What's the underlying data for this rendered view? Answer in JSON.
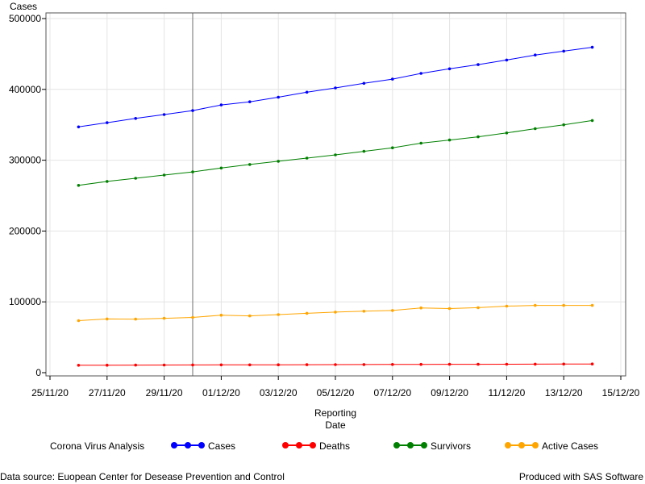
{
  "footer": {
    "source": "Data source: Euopean Center for Desease Prevention and Control",
    "produced": "Produced with SAS Software"
  },
  "chart_data": {
    "type": "line",
    "ylabel": "Cases",
    "xlabel_lines": [
      "Reporting",
      "Date"
    ],
    "legend_title": "Corona Virus Analysis",
    "legend_position": "bottom",
    "grid": true,
    "ylim": [
      0,
      500000
    ],
    "yticks": [
      0,
      100000,
      200000,
      300000,
      400000,
      500000
    ],
    "xlim": [
      "25/11/20",
      "15/12/20"
    ],
    "xticks": [
      "25/11/20",
      "27/11/20",
      "29/11/20",
      "01/12/20",
      "03/12/20",
      "05/12/20",
      "07/12/20",
      "09/12/20",
      "11/12/20",
      "13/12/20",
      "15/12/20"
    ],
    "reference_line_x": "30/11/20",
    "x": [
      "26/11/20",
      "27/11/20",
      "28/11/20",
      "29/11/20",
      "30/11/20",
      "01/12/20",
      "02/12/20",
      "03/12/20",
      "04/12/20",
      "05/12/20",
      "06/12/20",
      "07/12/20",
      "08/12/20",
      "09/12/20",
      "10/12/20",
      "11/12/20",
      "12/12/20",
      "13/12/20",
      "14/12/20"
    ],
    "series": [
      {
        "name": "Cases",
        "color": "#0000ff",
        "values": [
          347000,
          353000,
          359000,
          364500,
          370000,
          378000,
          382500,
          389000,
          396000,
          402000,
          408500,
          414500,
          422500,
          429000,
          435000,
          441500,
          448500,
          454000,
          459500
        ]
      },
      {
        "name": "Deaths",
        "color": "#ff0000",
        "values": [
          10500,
          10600,
          10700,
          10800,
          10900,
          11000,
          11100,
          11200,
          11300,
          11400,
          11500,
          11600,
          11700,
          11800,
          11900,
          12000,
          12100,
          12200,
          12300
        ]
      },
      {
        "name": "Survivors",
        "color": "#008000",
        "values": [
          264500,
          270000,
          274500,
          279000,
          283500,
          289000,
          294000,
          298500,
          303000,
          307500,
          312500,
          317500,
          324000,
          328500,
          333000,
          338500,
          344500,
          350000,
          356000
        ]
      },
      {
        "name": "Active Cases",
        "color": "#ffa500",
        "values": [
          73500,
          75800,
          75600,
          76800,
          78000,
          81200,
          80200,
          82000,
          83800,
          85500,
          86800,
          87800,
          91500,
          90500,
          91800,
          94000,
          95000,
          95000,
          95000
        ]
      }
    ]
  }
}
